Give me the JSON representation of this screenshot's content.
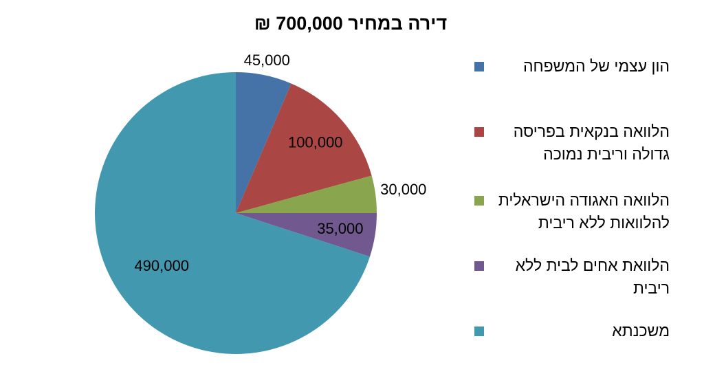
{
  "chart_data": {
    "type": "pie",
    "title": "דירה במחיר 700,000 ₪",
    "categories": [
      "הון עצמי של המשפחה",
      "הלוואה בנקאית בפריסה גדולה וריבית נמוכה",
      "הלוואה האגודה הישראלית להלוואות ללא ריבית",
      "הלוואת אחים לבית ללא ריבית",
      "משכנתא"
    ],
    "values": [
      45000,
      100000,
      30000,
      35000,
      490000
    ],
    "value_labels": [
      "45,000",
      "100,000",
      "30,000",
      "35,000",
      "490,000"
    ],
    "colors": [
      "#4572a7",
      "#aa4643",
      "#89a54e",
      "#71588f",
      "#4198af"
    ],
    "legend": "right"
  }
}
